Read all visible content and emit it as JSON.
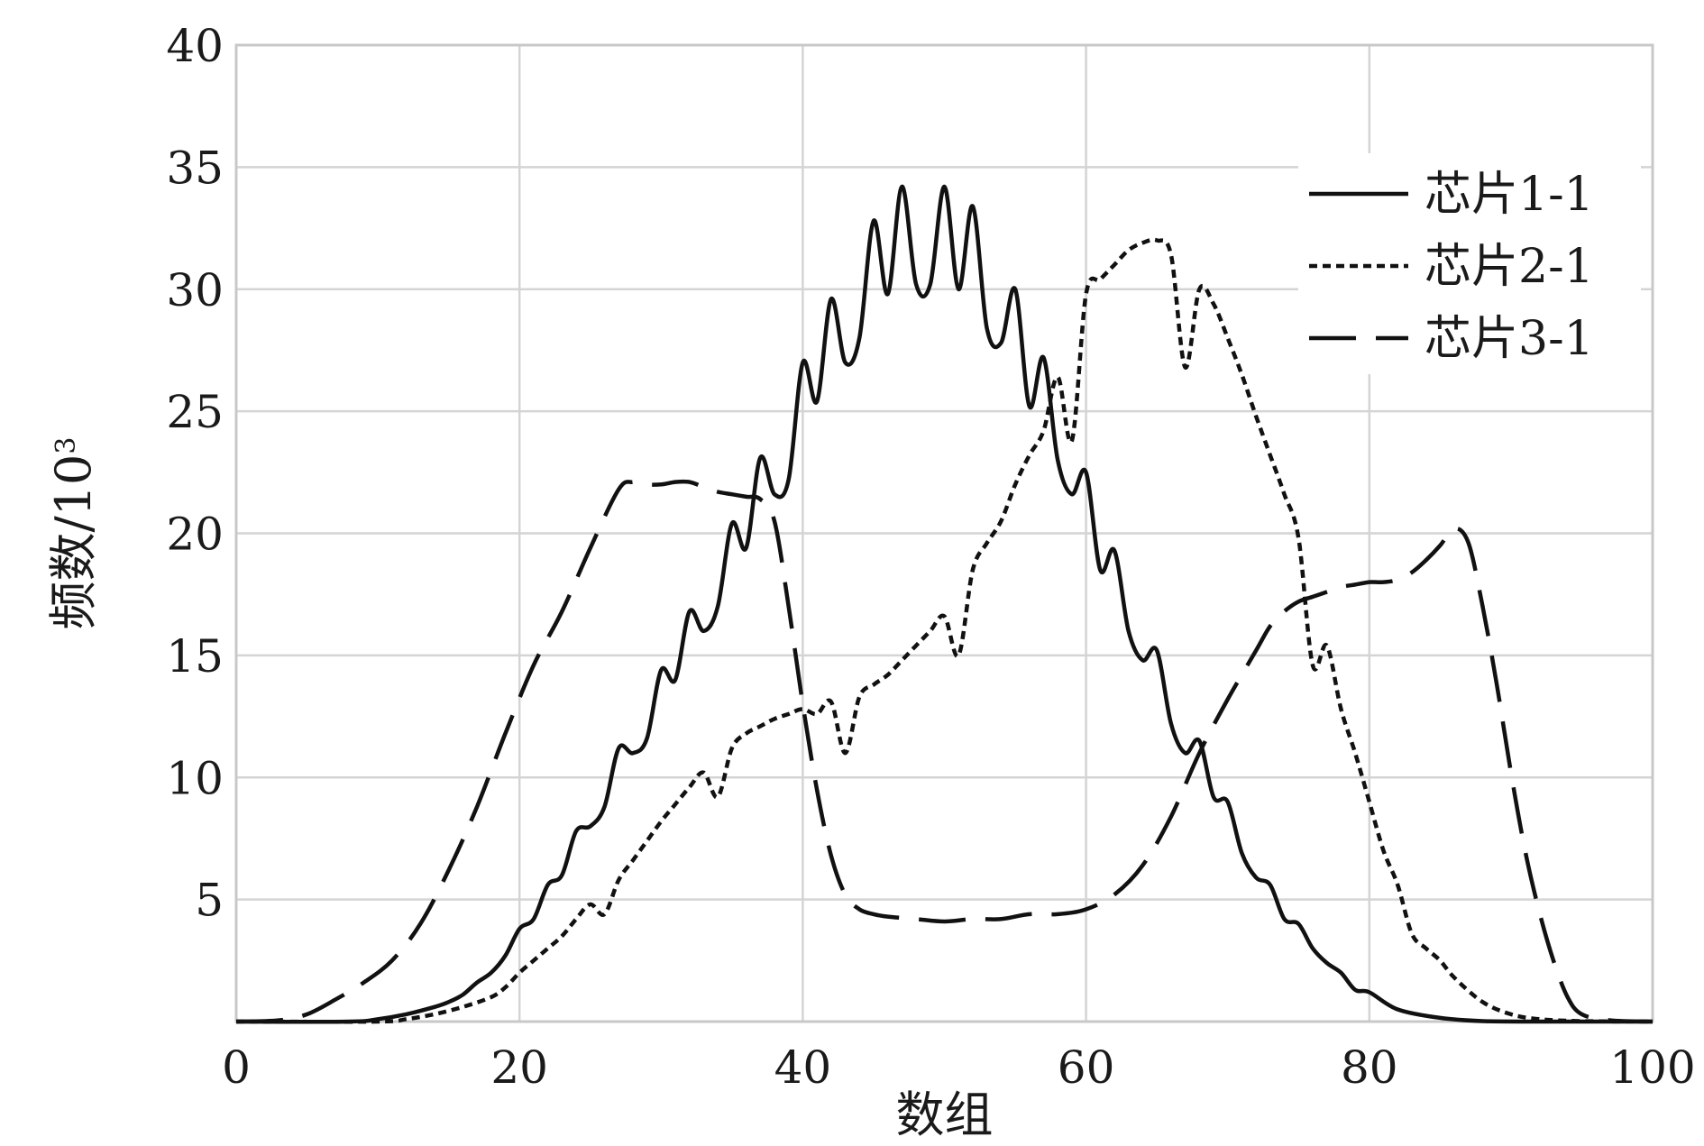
{
  "chart_data": {
    "type": "line",
    "xlabel": "数组",
    "ylabel_main": "频数/10",
    "ylabel_sup": "3",
    "xlim": [
      0,
      100
    ],
    "ylim": [
      0,
      40
    ],
    "x_ticks": [
      0,
      20,
      40,
      60,
      80,
      100
    ],
    "x_tick_labels": [
      "0",
      "20",
      "40",
      "60",
      "80",
      "100"
    ],
    "y_ticks": [
      5,
      10,
      15,
      20,
      25,
      30,
      35,
      40
    ],
    "y_tick_labels": [
      "5",
      "10",
      "15",
      "20",
      "25",
      "30",
      "35",
      "40"
    ],
    "grid": true,
    "legend_position": "top-right",
    "series": [
      {
        "name": "芯片1-1",
        "style": "solid",
        "x": [
          0,
          8,
          10,
          12,
          14,
          15,
          16,
          17,
          18,
          19,
          20,
          21,
          22,
          23,
          24,
          25,
          26,
          27,
          28,
          29,
          30,
          31,
          32,
          33,
          34,
          35,
          36,
          37,
          38,
          39,
          40,
          41,
          42,
          43,
          44,
          45,
          46,
          47,
          48,
          49,
          50,
          51,
          52,
          53,
          54,
          55,
          56,
          57,
          58,
          59,
          60,
          61,
          62,
          63,
          64,
          65,
          66,
          67,
          68,
          69,
          70,
          71,
          72,
          73,
          74,
          75,
          76,
          77,
          78,
          79,
          80,
          82,
          85,
          88,
          92,
          100
        ],
        "y": [
          0,
          0,
          0.1,
          0.3,
          0.6,
          0.8,
          1.1,
          1.6,
          2.0,
          2.7,
          3.8,
          4.2,
          5.6,
          6.0,
          7.8,
          8.0,
          8.8,
          11.2,
          11.0,
          11.6,
          14.4,
          14.0,
          16.8,
          16.0,
          17.0,
          20.4,
          19.4,
          23.1,
          21.6,
          22.2,
          27.0,
          25.4,
          29.6,
          27.0,
          28.0,
          32.8,
          29.8,
          34.2,
          30.2,
          30.2,
          34.2,
          30.0,
          33.4,
          28.4,
          27.8,
          30.0,
          25.2,
          27.2,
          23.0,
          21.6,
          22.5,
          18.5,
          19.3,
          16.0,
          14.8,
          15.2,
          12.2,
          11.0,
          11.5,
          9.2,
          9.0,
          6.9,
          5.9,
          5.6,
          4.2,
          4.0,
          3.0,
          2.4,
          2.0,
          1.3,
          1.2,
          0.5,
          0.15,
          0.02,
          0,
          0
        ]
      },
      {
        "name": "芯片2-1",
        "style": "dotted",
        "x": [
          0,
          10,
          12,
          14,
          16,
          18,
          19,
          20,
          21,
          22,
          23,
          24,
          25,
          26,
          27,
          28,
          29,
          30,
          31,
          32,
          33,
          34,
          35,
          36,
          37,
          38,
          39,
          40,
          41,
          42,
          43,
          44,
          45,
          46,
          47,
          48,
          49,
          50,
          51,
          52,
          53,
          54,
          55,
          56,
          57,
          58,
          59,
          60,
          61,
          62,
          63,
          64,
          65,
          66,
          67,
          68,
          69,
          70,
          71,
          72,
          73,
          74,
          75,
          76,
          77,
          78,
          79,
          80,
          81,
          82,
          83,
          84,
          85,
          86,
          88,
          90,
          92,
          95,
          100
        ],
        "y": [
          0,
          0,
          0.1,
          0.3,
          0.6,
          1.0,
          1.4,
          2.0,
          2.5,
          3.0,
          3.5,
          4.2,
          4.8,
          4.4,
          5.8,
          6.6,
          7.4,
          8.2,
          8.9,
          9.6,
          10.2,
          9.2,
          11.2,
          11.8,
          12.1,
          12.4,
          12.6,
          12.8,
          12.6,
          13.1,
          11.0,
          13.3,
          13.8,
          14.2,
          14.8,
          15.4,
          16.0,
          16.6,
          15.0,
          18.5,
          19.6,
          20.5,
          22.0,
          23.2,
          24.2,
          26.4,
          23.8,
          29.8,
          30.4,
          31.0,
          31.6,
          31.9,
          32.0,
          31.4,
          26.8,
          30.0,
          29.4,
          28.0,
          26.5,
          24.8,
          23.2,
          21.6,
          19.8,
          14.6,
          15.4,
          12.8,
          11.0,
          9.0,
          7.0,
          5.6,
          3.6,
          3.0,
          2.5,
          1.8,
          0.8,
          0.3,
          0.1,
          0.02,
          0
        ]
      },
      {
        "name": "芯片3-1",
        "style": "dashed",
        "x": [
          0,
          3,
          5,
          7,
          9,
          11,
          13,
          15,
          17,
          19,
          21,
          23,
          25,
          27,
          28,
          29,
          30,
          31,
          32,
          33,
          34,
          35,
          36,
          37,
          38,
          39,
          40,
          41,
          42,
          43,
          44,
          45,
          46,
          48,
          50,
          52,
          54,
          56,
          58,
          60,
          62,
          64,
          66,
          68,
          70,
          72,
          73,
          74,
          75,
          76,
          77,
          78,
          79,
          80,
          81,
          82,
          83,
          84,
          85,
          86,
          87,
          88,
          89,
          90,
          91,
          92,
          93,
          94,
          95,
          97,
          100
        ],
        "y": [
          0,
          0.05,
          0.3,
          0.9,
          1.6,
          2.5,
          4.0,
          6.2,
          8.8,
          11.8,
          14.6,
          16.8,
          19.4,
          21.8,
          22.1,
          22.0,
          22.0,
          22.1,
          22.1,
          21.9,
          21.7,
          21.6,
          21.5,
          21.4,
          20.5,
          17.0,
          13.0,
          9.5,
          6.8,
          5.2,
          4.6,
          4.4,
          4.3,
          4.2,
          4.1,
          4.2,
          4.2,
          4.4,
          4.4,
          4.6,
          5.2,
          6.4,
          8.4,
          11.0,
          13.2,
          15.2,
          16.2,
          16.8,
          17.2,
          17.4,
          17.6,
          17.8,
          17.9,
          18.0,
          18.0,
          18.1,
          18.4,
          18.9,
          19.5,
          20.2,
          19.6,
          17.0,
          13.8,
          10.2,
          7.0,
          4.5,
          2.5,
          1.0,
          0.3,
          0.05,
          0
        ]
      }
    ]
  }
}
